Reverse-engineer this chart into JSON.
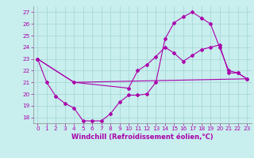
{
  "xlabel": "Windchill (Refroidissement éolien,°C)",
  "bg_color": "#c8eeee",
  "grid_color": "#a8d8d8",
  "line_color": "#aa00aa",
  "xlim": [
    -0.5,
    23.5
  ],
  "ylim": [
    17.5,
    27.5
  ],
  "yticks": [
    18,
    19,
    20,
    21,
    22,
    23,
    24,
    25,
    26,
    27
  ],
  "xticks": [
    0,
    1,
    2,
    3,
    4,
    5,
    6,
    7,
    8,
    9,
    10,
    11,
    12,
    13,
    14,
    15,
    16,
    17,
    18,
    19,
    20,
    21,
    22,
    23
  ],
  "line1_x": [
    0,
    1,
    2,
    3,
    4,
    5,
    6,
    7,
    8,
    9,
    10,
    11,
    12,
    13,
    14,
    15,
    16,
    17,
    18,
    19,
    20,
    21,
    22,
    23
  ],
  "line1_y": [
    23.0,
    21.0,
    19.8,
    19.2,
    18.8,
    17.7,
    17.7,
    17.7,
    18.3,
    19.3,
    19.9,
    19.9,
    20.0,
    21.0,
    24.7,
    26.1,
    26.6,
    27.0,
    26.5,
    26.0,
    24.0,
    22.0,
    21.8,
    21.3
  ],
  "line2_x": [
    0,
    4,
    10,
    11,
    12,
    13,
    14,
    15,
    16,
    17,
    18,
    19,
    20,
    21,
    22,
    23
  ],
  "line2_y": [
    23.0,
    21.0,
    20.5,
    22.0,
    22.5,
    23.2,
    24.0,
    23.5,
    22.8,
    23.3,
    23.8,
    24.0,
    24.2,
    21.8,
    21.8,
    21.3
  ],
  "line3_x": [
    0,
    4,
    23
  ],
  "line3_y": [
    23.0,
    21.0,
    21.3
  ],
  "tick_fontsize": 5.2,
  "xlabel_fontsize": 6.0
}
